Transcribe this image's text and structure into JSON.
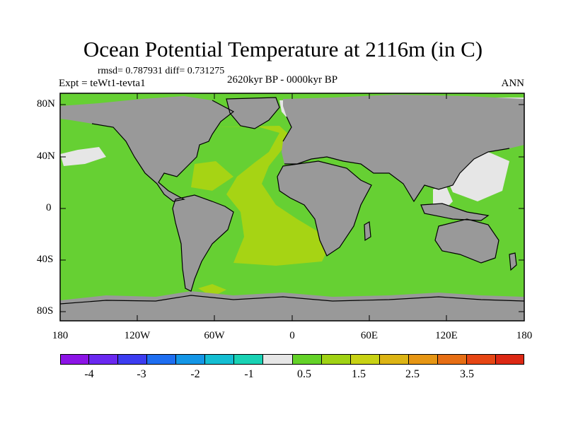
{
  "title": "Ocean Potential Temperature at 2116m (in C)",
  "stats": "rmsd= 0.787931 diff= 0.731275",
  "experiment": "Expt = teWt1-tevta1",
  "period": "2620kyr BP - 0000kyr BP",
  "season": "ANN",
  "lat_labels": [
    "80N",
    "40N",
    "0",
    "40S",
    "80S"
  ],
  "lon_labels": [
    "180",
    "120W",
    "60W",
    "0",
    "60E",
    "120E",
    "180"
  ],
  "colorbar": {
    "labels": [
      "-4",
      "-3",
      "-2",
      "-1",
      "0.5",
      "1.5",
      "2.5",
      "3.5"
    ],
    "colors": [
      "#8c14e6",
      "#6a28f0",
      "#3c3cf0",
      "#1e6ef0",
      "#1496e6",
      "#14bed2",
      "#19d2b4",
      "#e6e6e6",
      "#64d228",
      "#a0d214",
      "#c8d214",
      "#dcb414",
      "#e69614",
      "#e66e14",
      "#e64614",
      "#dc2814"
    ]
  },
  "colors": {
    "land": "#999999",
    "ocean_default": "#66d033",
    "warm_anomaly": "#a6d414",
    "near_zero": "#e6e6e6",
    "cool_anomaly": "#19d2b4"
  }
}
